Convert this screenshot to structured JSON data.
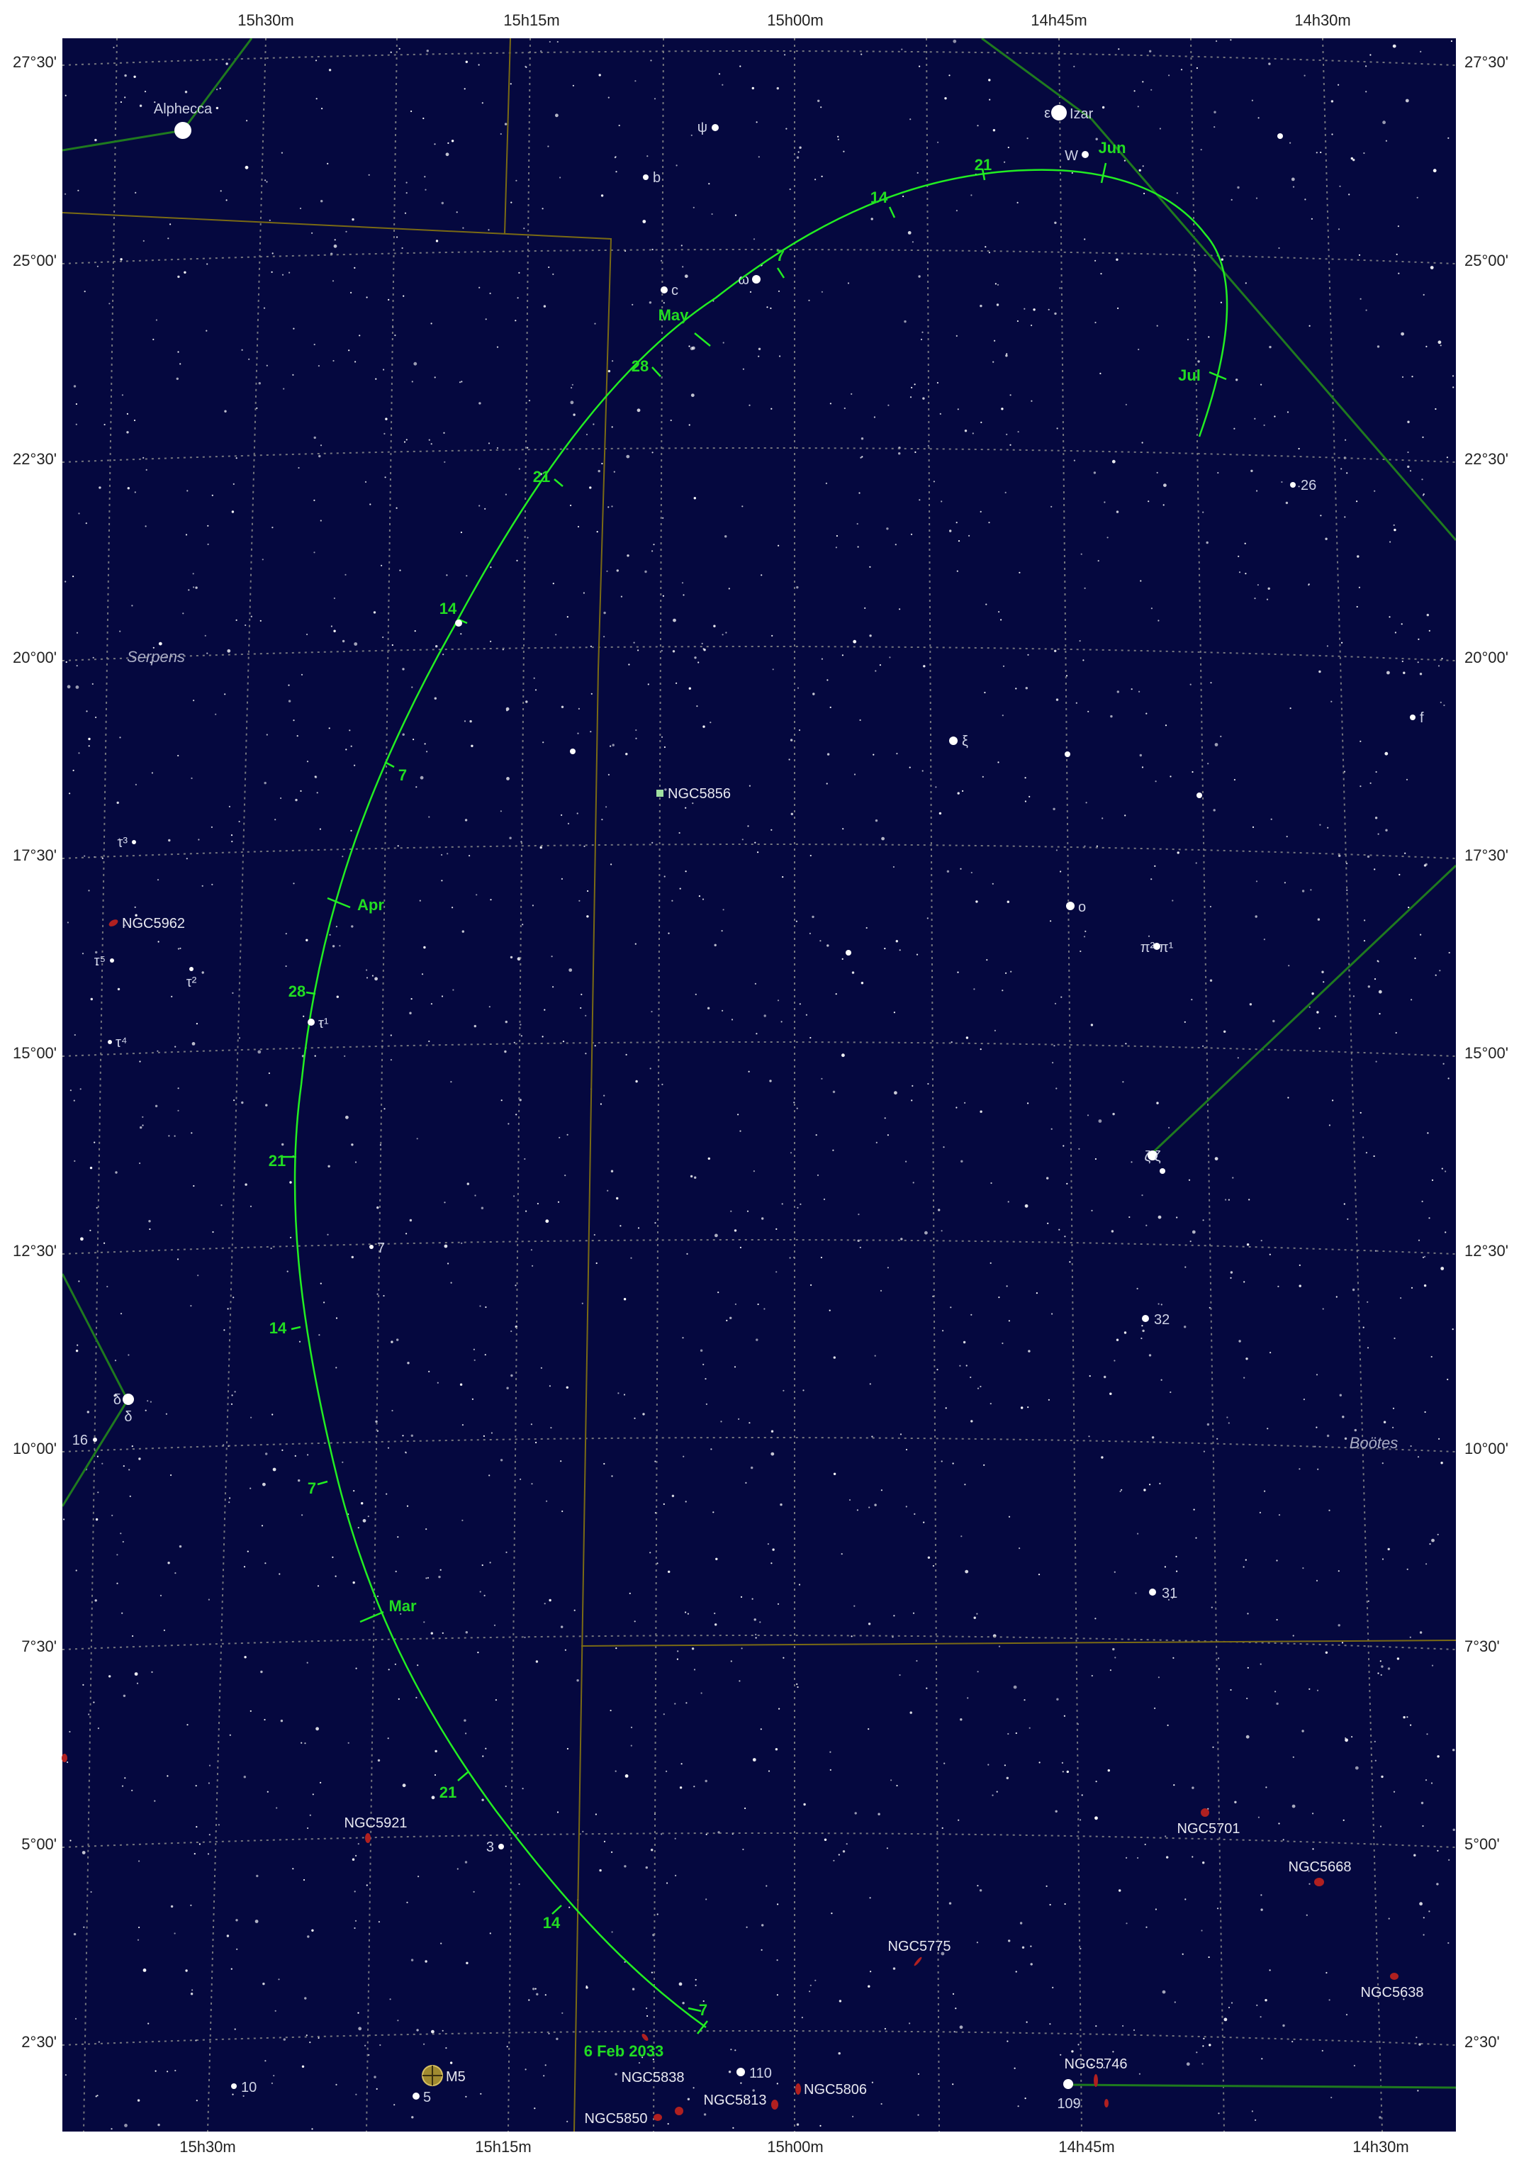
{
  "axes": {
    "ra_top": [
      "15h30m",
      "15h15m",
      "15h00m",
      "14h45m",
      "14h30m"
    ],
    "ra_bottom": [
      "15h30m",
      "15h15m",
      "15h00m",
      "14h45m",
      "14h30m"
    ],
    "dec": [
      "27°30'",
      "25°00'",
      "22°30'",
      "20°00'",
      "17°30'",
      "15°00'",
      "12°30'",
      "10°00'",
      "7°30'",
      "5°00'",
      "2°30'"
    ]
  },
  "constellations": [
    "Serpens",
    "Boötes"
  ],
  "stars": {
    "alphecca": "Alphecca",
    "izar": "Izar",
    "epsilon": "ε",
    "W": "W",
    "psi": "ψ",
    "b": "b",
    "c": "c",
    "omega": "ω",
    "xi": "ξ",
    "o": "o",
    "pi": "π² π¹",
    "zeta": "ζ ζ",
    "n32": "32",
    "n31": "31",
    "n26": "26",
    "f": "f",
    "tau3": "τ³",
    "tau5": "τ⁵",
    "tau2": "τ²",
    "tau4": "τ⁴",
    "tau1": "τ¹",
    "n7": "7",
    "delta1": "δ",
    "delta2": "δ",
    "n16": "16",
    "n3": "3",
    "n10": "10",
    "n5": "5",
    "n110": "110",
    "n109": "109"
  },
  "dsos": {
    "ngc5856": "NGC5856",
    "ngc5962": "NGC5962",
    "ngc5921": "NGC5921",
    "ngc5701": "NGC5701",
    "ngc5668": "NGC5668",
    "ngc5775": "NGC5775",
    "ngc5638": "NGC5638",
    "ngc5746": "NGC5746",
    "ngc5838": "NGC5838",
    "ngc5806": "NGC5806",
    "ngc5813": "NGC5813",
    "ngc5850": "NGC5850",
    "m5": "M5"
  },
  "path": {
    "start": "6 Feb 2033",
    "ticks": [
      "7",
      "14",
      "21",
      "Mar",
      "7",
      "14",
      "21",
      "28",
      "Apr",
      "7",
      "14",
      "21",
      "28",
      "May",
      "7",
      "14",
      "21",
      "Jun",
      "Jul"
    ]
  },
  "colors": {
    "sky": "#05083f",
    "grid": "#8a8a8a",
    "boundary": "#7a6a14",
    "figure": "#1f7a1f",
    "path": "#22ee22",
    "path_label": "#22dd22",
    "star": "#ffffff",
    "star_label": "#cfd3e6",
    "galaxy": "#b02020",
    "cluster": "#a08a30",
    "constellation_label": "#a9acc4"
  }
}
